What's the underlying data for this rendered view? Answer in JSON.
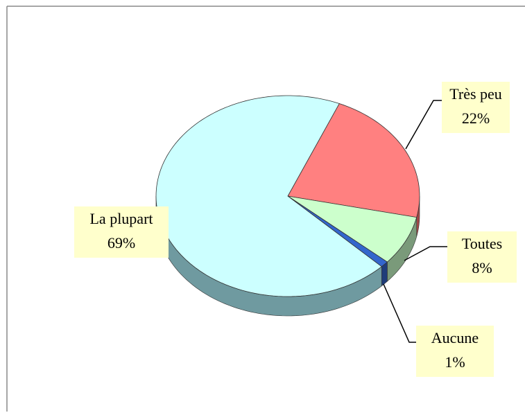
{
  "chart_data": {
    "type": "pie",
    "categories": [
      "Très peu",
      "Toutes",
      "Aucune",
      "La plupart"
    ],
    "values": [
      22,
      8,
      1,
      69
    ],
    "value_labels": [
      "22%",
      "8%",
      "1%",
      "69%"
    ],
    "colors": [
      "#ff8080",
      "#ccffcc",
      "#3366cc",
      "#ccffff"
    ],
    "side_colors": [
      "#a04848",
      "#7a9a7a",
      "#1f3d7a",
      "#6f9aa0"
    ]
  }
}
